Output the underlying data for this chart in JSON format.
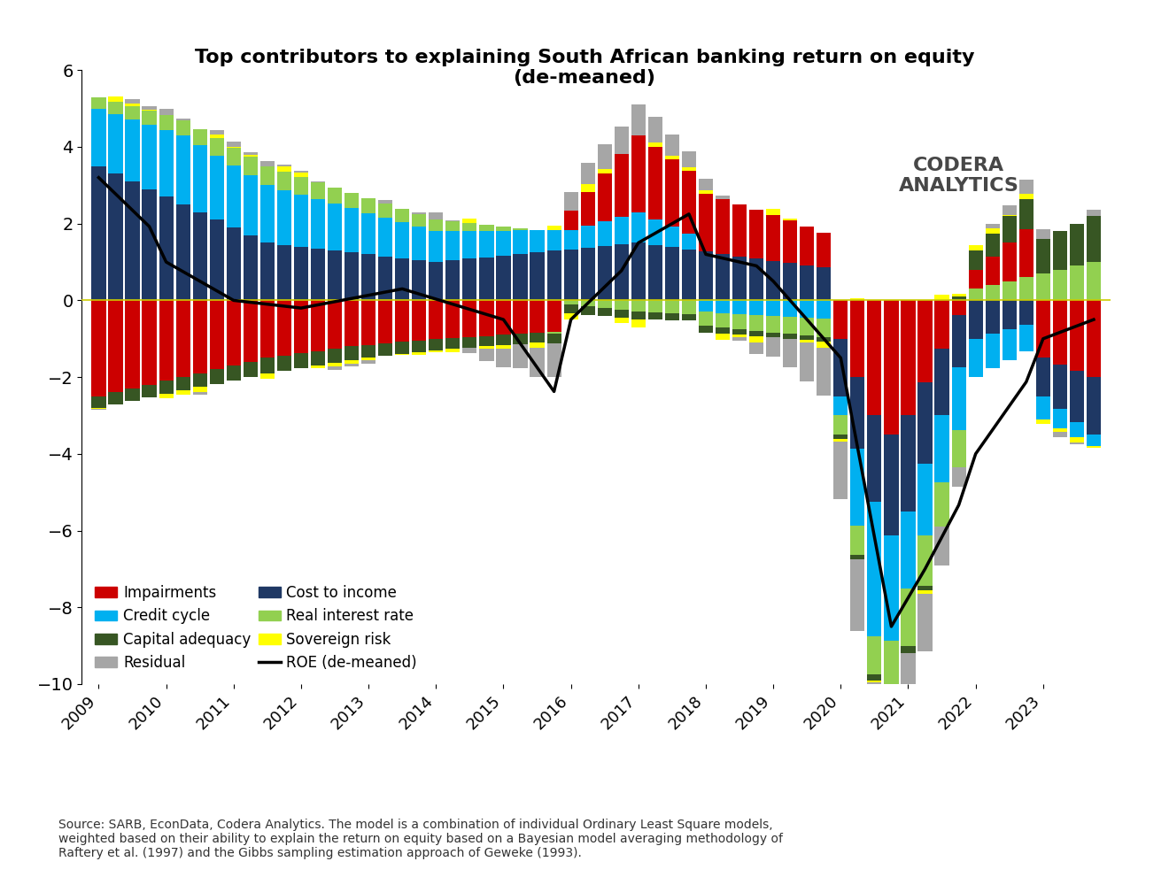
{
  "title": "Top contributors to explaining South African banking return on equity\n(de-meaned)",
  "colors": {
    "impairments": "#CC0000",
    "cost_to_income": "#1F3864",
    "credit_cycle": "#00B0F0",
    "real_interest_rate": "#92D050",
    "capital_adequacy": "#375623",
    "sovereign_risk": "#FFFF00",
    "residual": "#A6A6A6",
    "roe_line": "#000000"
  },
  "legend_labels": {
    "impairments": "Impairments",
    "cost_to_income": "Cost to income",
    "credit_cycle": "Credit cycle",
    "real_interest_rate": "Real interest rate",
    "capital_adequacy": "Capital adequacy",
    "sovereign_risk": "Sovereign risk",
    "residual": "Residual",
    "roe_line": "ROE (de-meaned)"
  },
  "source_text": "Source: SARB, EconData, Codera Analytics. The model is a combination of individual Ordinary Least Square models,\nweighted based on their ability to explain the return on equity based on a Bayesian model averaging methodology of\nRaftery et al. (1997) and the Gibbs sampling estimation approach of Geweke (1993).",
  "ylim": [
    -10,
    6
  ],
  "yticks": [
    -10,
    -8,
    -6,
    -4,
    -2,
    0,
    2,
    4,
    6
  ],
  "background_color": "#FFFFFF",
  "header_color": "#4A7A4A",
  "bar_width": 0.85
}
